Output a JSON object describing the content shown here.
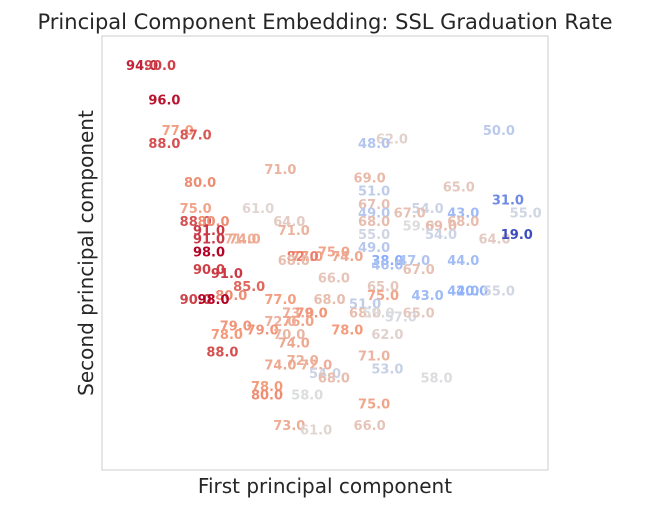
{
  "chart_data": {
    "type": "scatter",
    "title": "Principal Component Embedding: SSL Graduation Rate",
    "xlabel": "First principal component",
    "ylabel": "Second principal component",
    "xlim": [
      0,
      100
    ],
    "ylim": [
      0,
      100
    ],
    "grid": false,
    "x_ticks_shown": false,
    "y_ticks_shown": false,
    "colormap": "coolwarm",
    "color_range": [
      19,
      98
    ],
    "points": [
      {
        "x": 9,
        "y": 93,
        "label": "94.0"
      },
      {
        "x": 13,
        "y": 93,
        "label": "90.0"
      },
      {
        "x": 14,
        "y": 85,
        "label": "96.0"
      },
      {
        "x": 17,
        "y": 78,
        "label": "77.0"
      },
      {
        "x": 21,
        "y": 77,
        "label": "87.0"
      },
      {
        "x": 14,
        "y": 75,
        "label": "88.0"
      },
      {
        "x": 22,
        "y": 66,
        "label": "80.0"
      },
      {
        "x": 40,
        "y": 69,
        "label": "71.0"
      },
      {
        "x": 65,
        "y": 76,
        "label": "62.0"
      },
      {
        "x": 61,
        "y": 75,
        "label": "48.0"
      },
      {
        "x": 89,
        "y": 78,
        "label": "50.0"
      },
      {
        "x": 60,
        "y": 67,
        "label": "69.0"
      },
      {
        "x": 61,
        "y": 64,
        "label": "51.0"
      },
      {
        "x": 80,
        "y": 65,
        "label": "65.0"
      },
      {
        "x": 91,
        "y": 62,
        "label": "31.0"
      },
      {
        "x": 95,
        "y": 59,
        "label": "55.0"
      },
      {
        "x": 21,
        "y": 60,
        "label": "75.0"
      },
      {
        "x": 35,
        "y": 60,
        "label": "61.0"
      },
      {
        "x": 61,
        "y": 61,
        "label": "67.0"
      },
      {
        "x": 73,
        "y": 60,
        "label": "54.0"
      },
      {
        "x": 61,
        "y": 59,
        "label": "49.0"
      },
      {
        "x": 69,
        "y": 59,
        "label": "67.0"
      },
      {
        "x": 81,
        "y": 59,
        "label": "43.0"
      },
      {
        "x": 21,
        "y": 57,
        "label": "88.0"
      },
      {
        "x": 25,
        "y": 57,
        "label": "80.0"
      },
      {
        "x": 42,
        "y": 57,
        "label": "64.0"
      },
      {
        "x": 61,
        "y": 57,
        "label": "68.0"
      },
      {
        "x": 71,
        "y": 56,
        "label": "59.0"
      },
      {
        "x": 76,
        "y": 56,
        "label": "69.0"
      },
      {
        "x": 81,
        "y": 57,
        "label": "68.0"
      },
      {
        "x": 24,
        "y": 55,
        "label": "91.0"
      },
      {
        "x": 43,
        "y": 55,
        "label": "71.0"
      },
      {
        "x": 61,
        "y": 54,
        "label": "55.0"
      },
      {
        "x": 76,
        "y": 54,
        "label": "54.0"
      },
      {
        "x": 88,
        "y": 53,
        "label": "64.0"
      },
      {
        "x": 93,
        "y": 54,
        "label": "19.0"
      },
      {
        "x": 24,
        "y": 53,
        "label": "91.0"
      },
      {
        "x": 31,
        "y": 53,
        "label": "71.0"
      },
      {
        "x": 32,
        "y": 53,
        "label": "74.0"
      },
      {
        "x": 61,
        "y": 51,
        "label": "49.0"
      },
      {
        "x": 24,
        "y": 50,
        "label": "98.0"
      },
      {
        "x": 46,
        "y": 49,
        "label": "77.0"
      },
      {
        "x": 52,
        "y": 50,
        "label": "75.0"
      },
      {
        "x": 45,
        "y": 49,
        "label": "82.0"
      },
      {
        "x": 55,
        "y": 49,
        "label": "74.0"
      },
      {
        "x": 64,
        "y": 48,
        "label": "38.0"
      },
      {
        "x": 70,
        "y": 48,
        "label": "47.0"
      },
      {
        "x": 81,
        "y": 48,
        "label": "44.0"
      },
      {
        "x": 43,
        "y": 48,
        "label": "68.0"
      },
      {
        "x": 64,
        "y": 47,
        "label": "46.0"
      },
      {
        "x": 24,
        "y": 46,
        "label": "90.0"
      },
      {
        "x": 71,
        "y": 46,
        "label": "67.0"
      },
      {
        "x": 28,
        "y": 45,
        "label": "91.0"
      },
      {
        "x": 52,
        "y": 44,
        "label": "66.0"
      },
      {
        "x": 63,
        "y": 42,
        "label": "65.0"
      },
      {
        "x": 81,
        "y": 41,
        "label": "42.0"
      },
      {
        "x": 83,
        "y": 41,
        "label": "40.0"
      },
      {
        "x": 89,
        "y": 41,
        "label": "55.0"
      },
      {
        "x": 33,
        "y": 42,
        "label": "85.0"
      },
      {
        "x": 29,
        "y": 40,
        "label": "80.0"
      },
      {
        "x": 63,
        "y": 40,
        "label": "75.0"
      },
      {
        "x": 73,
        "y": 40,
        "label": "43.0"
      },
      {
        "x": 21,
        "y": 39,
        "label": "90.0"
      },
      {
        "x": 25,
        "y": 39,
        "label": "98.0"
      },
      {
        "x": 40,
        "y": 39,
        "label": "77.0"
      },
      {
        "x": 51,
        "y": 39,
        "label": "68.0"
      },
      {
        "x": 59,
        "y": 38,
        "label": "51.0"
      },
      {
        "x": 44,
        "y": 36,
        "label": "73.0"
      },
      {
        "x": 47,
        "y": 36,
        "label": "79.0"
      },
      {
        "x": 59,
        "y": 36,
        "label": "68.0"
      },
      {
        "x": 62,
        "y": 36,
        "label": "59.0"
      },
      {
        "x": 67,
        "y": 35,
        "label": "57.0"
      },
      {
        "x": 71,
        "y": 36,
        "label": "65.0"
      },
      {
        "x": 44,
        "y": 34,
        "label": "76.0"
      },
      {
        "x": 40,
        "y": 34,
        "label": "72.0"
      },
      {
        "x": 30,
        "y": 33,
        "label": "79.0"
      },
      {
        "x": 36,
        "y": 32,
        "label": "79.0"
      },
      {
        "x": 55,
        "y": 32,
        "label": "78.0"
      },
      {
        "x": 28,
        "y": 31,
        "label": "78.0"
      },
      {
        "x": 42,
        "y": 31,
        "label": "70.0"
      },
      {
        "x": 64,
        "y": 31,
        "label": "62.0"
      },
      {
        "x": 43,
        "y": 29,
        "label": "74.0"
      },
      {
        "x": 27,
        "y": 27,
        "label": "88.0"
      },
      {
        "x": 45,
        "y": 25,
        "label": "72.0"
      },
      {
        "x": 61,
        "y": 26,
        "label": "71.0"
      },
      {
        "x": 40,
        "y": 24,
        "label": "74.0"
      },
      {
        "x": 48,
        "y": 24,
        "label": "72.0"
      },
      {
        "x": 64,
        "y": 23,
        "label": "53.0"
      },
      {
        "x": 50,
        "y": 22,
        "label": "54.0"
      },
      {
        "x": 52,
        "y": 21,
        "label": "68.0"
      },
      {
        "x": 75,
        "y": 21,
        "label": "58.0"
      },
      {
        "x": 37,
        "y": 19,
        "label": "78.0"
      },
      {
        "x": 37,
        "y": 17,
        "label": "80.0"
      },
      {
        "x": 46,
        "y": 17,
        "label": "58.0"
      },
      {
        "x": 61,
        "y": 15,
        "label": "75.0"
      },
      {
        "x": 42,
        "y": 10,
        "label": "73.0"
      },
      {
        "x": 48,
        "y": 9,
        "label": "61.0"
      },
      {
        "x": 60,
        "y": 10,
        "label": "66.0"
      }
    ]
  }
}
